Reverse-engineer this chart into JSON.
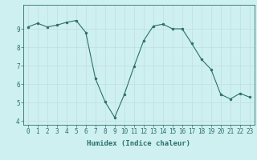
{
  "x": [
    0,
    1,
    2,
    3,
    4,
    5,
    6,
    7,
    8,
    9,
    10,
    11,
    12,
    13,
    14,
    15,
    16,
    17,
    18,
    19,
    20,
    21,
    22,
    23
  ],
  "y": [
    9.1,
    9.3,
    9.1,
    9.2,
    9.35,
    9.45,
    8.8,
    6.3,
    5.05,
    4.2,
    5.45,
    6.95,
    8.35,
    9.15,
    9.25,
    9.0,
    9.0,
    8.2,
    7.35,
    6.8,
    5.45,
    5.2,
    5.5,
    5.3
  ],
  "line_color": "#2d6e6e",
  "marker_color": "#2d6e6e",
  "bg_color": "#cff0f0",
  "grid_color": "#c0e0e0",
  "axis_label_color": "#2d6e6e",
  "tick_color": "#2d6e6e",
  "xlabel": "Humidex (Indice chaleur)",
  "ylim": [
    3.8,
    10.3
  ],
  "yticks": [
    4,
    5,
    6,
    7,
    8,
    9
  ],
  "xlim": [
    -0.5,
    23.5
  ],
  "font_size": 5.5,
  "label_font_size": 6.5
}
